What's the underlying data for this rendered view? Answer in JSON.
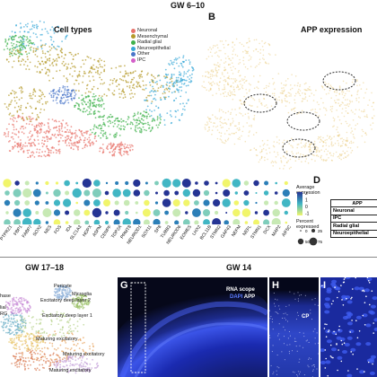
{
  "headers": {
    "top": "GW 6–10",
    "bottom_left": "GW 17–18",
    "bottom_mid": "GW 14"
  },
  "panels": {
    "b": "B",
    "d": "D",
    "g": "G",
    "h": "H",
    "i": "I"
  },
  "umap_a": {
    "title": "Cell types",
    "legend": [
      {
        "label": "Neuronal",
        "color": "#e8736b"
      },
      {
        "label": "Mesenchymal",
        "color": "#b59a2a"
      },
      {
        "label": "Radial glial",
        "color": "#3fb24c"
      },
      {
        "label": "Neuroepithelial",
        "color": "#3aa9d8"
      },
      {
        "label": "Other",
        "color": "#4a76c9"
      },
      {
        "label": "IPC",
        "color": "#d45fc9"
      }
    ]
  },
  "umap_b": {
    "title": "APP expression"
  },
  "dotplot": {
    "genes": [
      "PTPRZ1",
      "FBP1",
      "FABP7",
      "SOX2",
      "NES",
      "FOS",
      "ID4",
      "SLC1A3",
      "HOPX",
      "ASPM",
      "CENPF",
      "TOP2A",
      "PRMT8",
      "NEUROD1",
      "SOX11",
      "SP8",
      "TUBB3",
      "NEUROD6",
      "EOMES",
      "LHX2",
      "BCL11B",
      "STMN2",
      "GAP43",
      "NEFM",
      "NEFL",
      "STMN1",
      "DCX",
      "MAP2",
      "AIF5C"
    ],
    "color_legend_title": "Average expression",
    "color_ticks": [
      "2",
      "1",
      "0",
      "-1"
    ],
    "size_legend_title": "Percent expressed",
    "size_ticks": [
      "0",
      "25",
      "50",
      "75"
    ]
  },
  "table_d": {
    "header": "APP",
    "rows": [
      "Neuronal",
      "IPC",
      "Radial glial",
      "Neuroepithelial"
    ]
  },
  "umap_e": {
    "labels": [
      "Pericyte",
      "Microglia",
      "Excitatory deep layer 2",
      "Excitatory deep layer 1",
      "Maturing excitatory",
      "Maturing excitatory",
      "Maturing excitatory"
    ],
    "partial_labels": [
      "hase",
      "lial",
      "RG"
    ]
  },
  "image_g": {
    "label1": "RNA scope",
    "label2a": "DAPI",
    "label2b": "APP"
  },
  "image_h": {
    "label": "CP"
  },
  "colors": {
    "neuronal": "#e8736b",
    "mesenchymal": "#b59a2a",
    "radial_glial": "#3fb24c",
    "neuroepithelial": "#3aa9d8",
    "dapi": "#3b54e8",
    "app_expression": "#e7c36a",
    "dotplot_high": "#253494",
    "dotplot_low": "#f1f56b"
  }
}
